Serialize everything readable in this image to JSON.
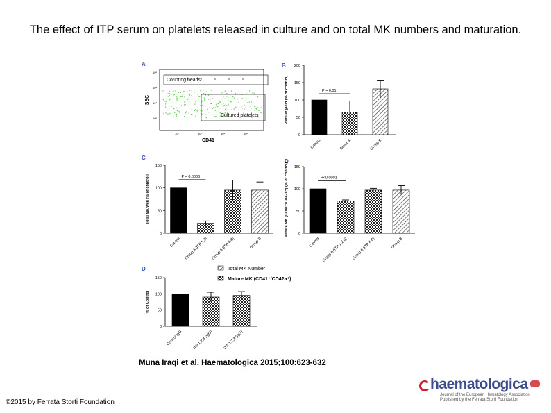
{
  "slide": {
    "title": "The effect of ITP serum on platelets released in culture and on total MK numbers and maturation.",
    "citation": "Muna Iraqi et al. Haematologica 2015;100:623-632",
    "copyright": "©2015 by Ferrata Storti Foundation",
    "logo": {
      "word": "haematologica",
      "tagline1": "Journal of the European Hematology Association",
      "tagline2": "Published by the Ferrata Storti Foundation"
    }
  },
  "colors": {
    "black": "#000000",
    "hatch": "#444444",
    "scatter": "#66cc55"
  },
  "chart_data": [
    {
      "panel": "A",
      "type": "scatter",
      "xlabel": "CD41",
      "ylabel": "SSC",
      "gate_labels": [
        "Counting beads",
        "Cultured platelets"
      ],
      "x_ticks": [
        "10²",
        "10³",
        "10⁴",
        "10⁵"
      ],
      "y_ticks": [
        "10⁵",
        "10⁴",
        "10³",
        "10²"
      ],
      "scale": "log"
    },
    {
      "panel": "B",
      "type": "bar",
      "categories": [
        "Control",
        "Group A",
        "Group B"
      ],
      "values": [
        100,
        65,
        132
      ],
      "errors": [
        0,
        32,
        25
      ],
      "patterns": [
        "solid",
        "check",
        "hatch"
      ],
      "ylabel": "Platelet yield (% of control)",
      "ylim": [
        0,
        200
      ],
      "yticks": [
        0,
        50,
        100,
        150,
        200
      ],
      "annotation": "P = 0.01"
    },
    {
      "panel": "C",
      "type": "bar",
      "categories": [
        "Control",
        "Group A (ITP 1,2)",
        "Group A (ITP 4-8)",
        "Group B"
      ],
      "values": [
        100,
        22,
        95,
        95
      ],
      "errors": [
        0,
        5,
        22,
        18
      ],
      "patterns": [
        "solid",
        "check",
        "check",
        "hatch"
      ],
      "ylabel": "Total MK/well (% of control)",
      "ylim": [
        0,
        150
      ],
      "yticks": [
        0,
        50,
        100,
        150
      ],
      "annotation": "P = 0.0006"
    },
    {
      "panel": "D",
      "type": "bar",
      "categories": [
        "Control",
        "Group A (ITP 1,2,3)",
        "Group A (ITP 4-8)",
        "Group B"
      ],
      "values": [
        100,
        73,
        97,
        97
      ],
      "errors": [
        0,
        2,
        4,
        10
      ],
      "patterns": [
        "solid",
        "check",
        "check",
        "hatch"
      ],
      "ylabel": "Mature MK (CD41⁺/CD42a⁺) (% of control)",
      "ylim": [
        0,
        150
      ],
      "yticks": [
        0,
        50,
        100,
        150
      ],
      "annotation": "P<0.0001"
    },
    {
      "panel": "E",
      "type": "bar",
      "categories": [
        "Control IgG",
        "ITP 1,2,3 (IgG)",
        "ITP 1,2,3 (IgG)"
      ],
      "values": [
        100,
        90,
        95
      ],
      "errors": [
        0,
        15,
        12
      ],
      "patterns": [
        "solid",
        "check",
        "check"
      ],
      "ylabel": "% of Control",
      "ylim": [
        0,
        150
      ],
      "yticks": [
        0,
        50,
        100,
        150
      ],
      "legend": [
        "Total MK Number",
        "Mature MK (CD41⁺/CD42a⁺)"
      ]
    }
  ]
}
